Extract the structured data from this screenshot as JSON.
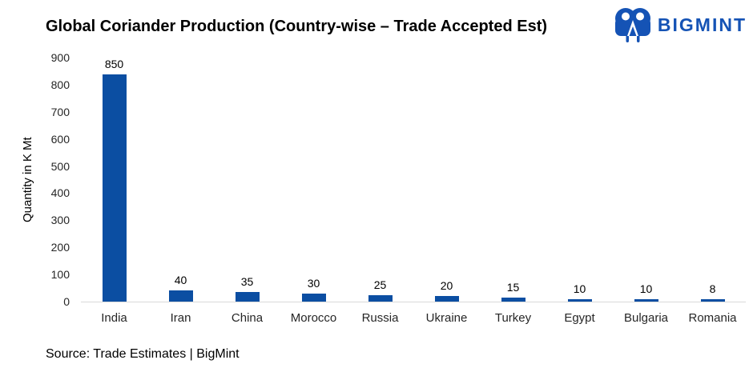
{
  "title": "Global Coriander Production (Country-wise – Trade Accepted Est)",
  "logo": {
    "text": "BIGMINT",
    "brand_color": "#1553B5",
    "icon": "bigmint-people-icon"
  },
  "axis": {
    "y_label": "Quantity in K Mt",
    "y_ticks": [
      900,
      800,
      700,
      600,
      500,
      400,
      300,
      200,
      100,
      0
    ]
  },
  "source": "Source: Trade Estimates | BigMint",
  "chart_data": {
    "type": "bar",
    "title": "Global Coriander Production (Country-wise – Trade Accepted Est)",
    "categories": [
      "India",
      "Iran",
      "China",
      "Morocco",
      "Russia",
      "Ukraine",
      "Turkey",
      "Egypt",
      "Bulgaria",
      "Romania"
    ],
    "values": [
      850,
      40,
      35,
      30,
      25,
      20,
      15,
      10,
      10,
      8
    ],
    "xlabel": "",
    "ylabel": "Quantity in K Mt",
    "ylim": [
      0,
      900
    ],
    "bar_color": "#0B4EA2",
    "baseline_color": "#D9D9D9",
    "grid": false,
    "data_labels": true,
    "legend": "none"
  }
}
